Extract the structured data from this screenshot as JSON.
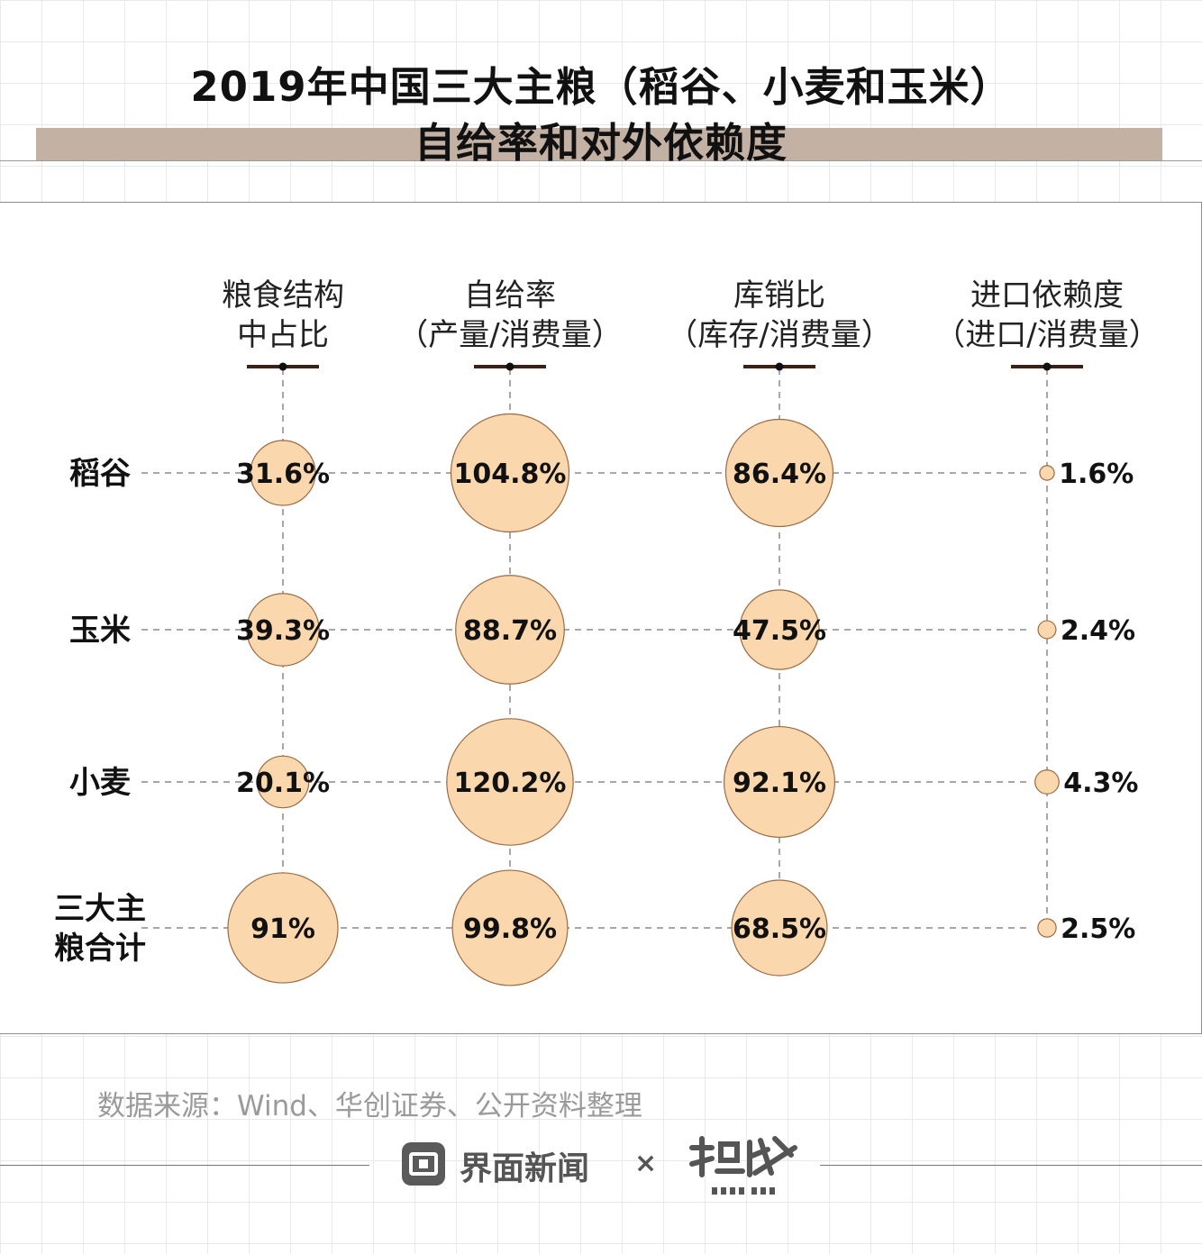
{
  "title": {
    "line1": "2019年中国三大主粮（稻谷、小麦和玉米）",
    "line2": "自给率和对外依赖度"
  },
  "chart_data": {
    "type": "bubble-table",
    "columns": [
      {
        "label_line1": "粮食结构",
        "label_line2": "中占比"
      },
      {
        "label_line1": "自给率",
        "label_line2": "（产量/消费量）"
      },
      {
        "label_line1": "库销比",
        "label_line2": "（库存/消费量）"
      },
      {
        "label_line1": "进口依赖度",
        "label_line2": "（进口/消费量）"
      }
    ],
    "rows": [
      {
        "name_lines": [
          "稻谷"
        ],
        "values": [
          31.6,
          104.8,
          86.4,
          1.6
        ],
        "labels": [
          "31.6%",
          "104.8%",
          "86.4%",
          "1.6%"
        ]
      },
      {
        "name_lines": [
          "玉米"
        ],
        "values": [
          39.3,
          88.7,
          47.5,
          2.4
        ],
        "labels": [
          "39.3%",
          "88.7%",
          "47.5%",
          "2.4%"
        ]
      },
      {
        "name_lines": [
          "小麦"
        ],
        "values": [
          20.1,
          120.2,
          92.1,
          4.3
        ],
        "labels": [
          "20.1%",
          "120.2%",
          "92.1%",
          "4.3%"
        ]
      },
      {
        "name_lines": [
          "三大主",
          "粮合计"
        ],
        "values": [
          91,
          99.8,
          68.5,
          2.5
        ],
        "labels": [
          "91%",
          "99.8%",
          "68.5%",
          "2.5%"
        ]
      }
    ],
    "unit": "%",
    "colors": {
      "bubble_fill": "#fad7ad",
      "bubble_stroke": "#9c6b44",
      "guide": "#8a8a8a"
    }
  },
  "source": "数据来源：Wind、华创证券、公开资料整理",
  "footer": {
    "brand": "界面新闻",
    "times": "×",
    "partner_logo_icon": "datawire-logo-icon",
    "brand_logo_icon": "jiemian-logo-icon"
  }
}
